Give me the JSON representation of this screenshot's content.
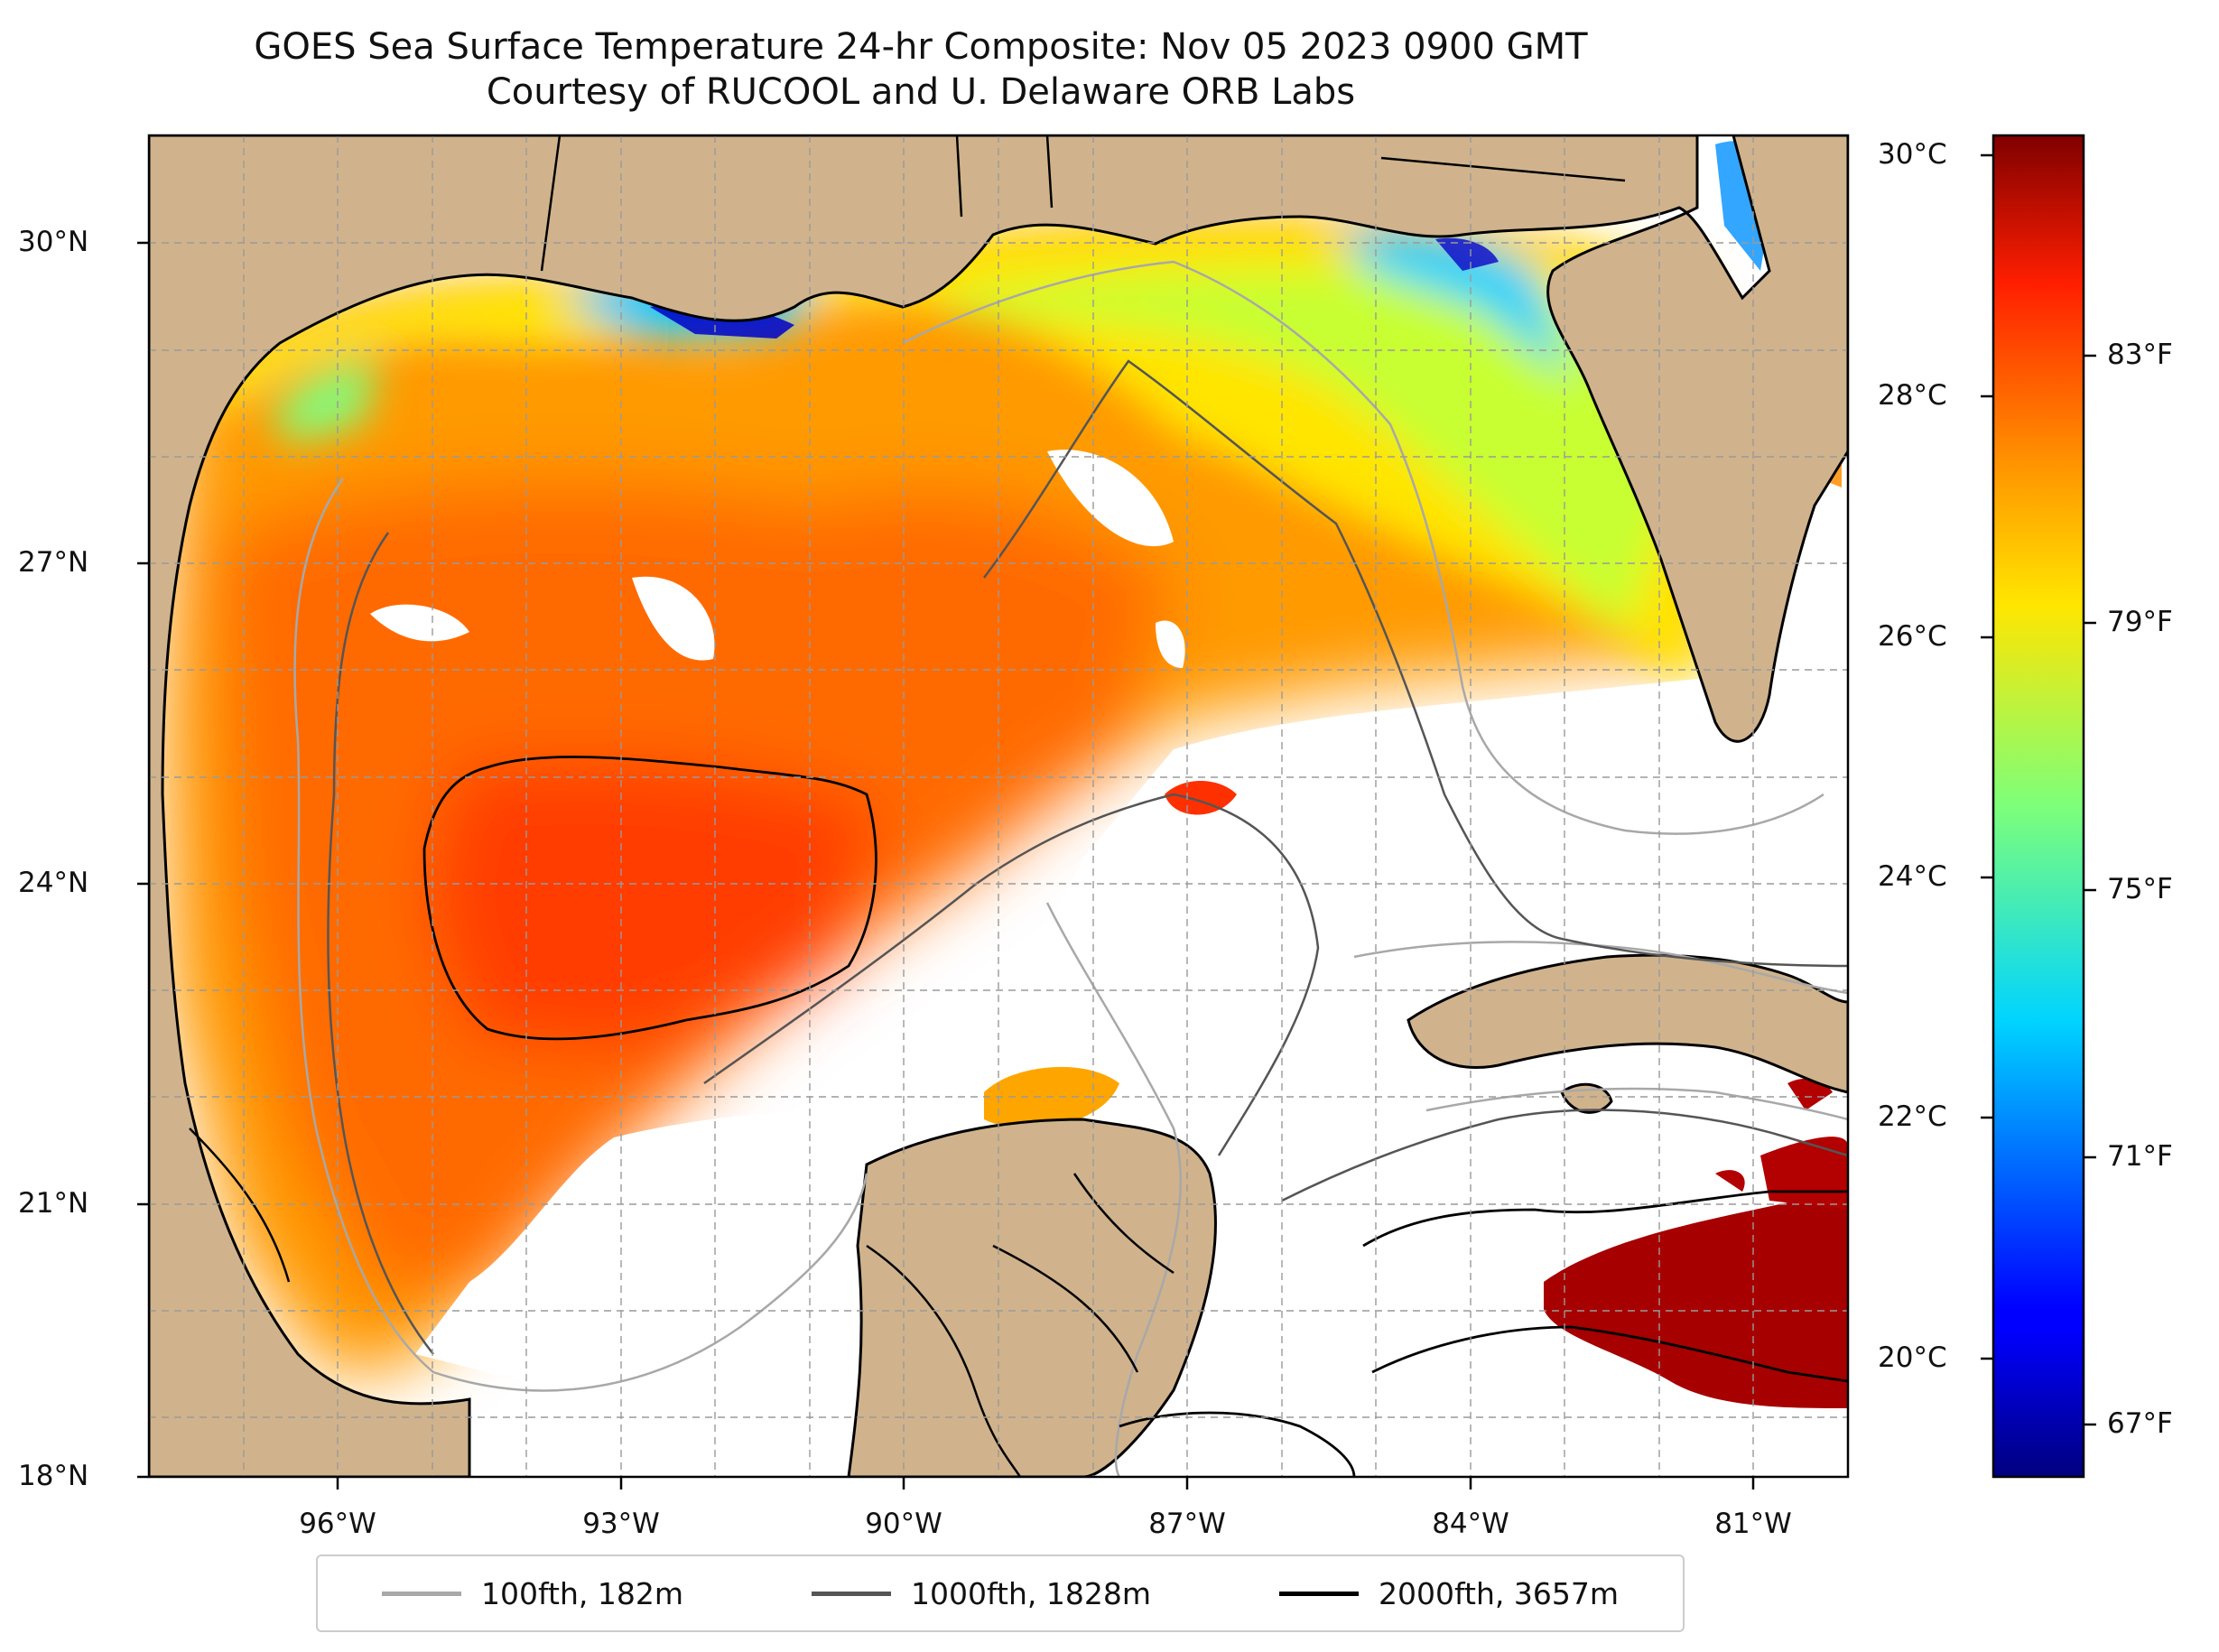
{
  "title": {
    "line1": "GOES Sea Surface Temperature 24-hr Composite: Nov 05 2023 0900 GMT",
    "line2": "Courtesy of RUCOOL and U. Delaware ORB Labs"
  },
  "map": {
    "lon_range": [
      -98,
      -80
    ],
    "lat_range": [
      18,
      31
    ],
    "grid": true,
    "lat_ticks": [
      "30°N",
      "27°N",
      "24°N",
      "21°N",
      "18°N"
    ],
    "lon_ticks": [
      "96°W",
      "93°W",
      "90°W",
      "87°W",
      "84°W",
      "81°W"
    ],
    "land_color": "#d0b38c",
    "no_data_color": "#ffffff"
  },
  "colorbar": {
    "celsius_ticks": [
      "30°C",
      "28°C",
      "26°C",
      "24°C",
      "22°C",
      "20°C"
    ],
    "fahrenheit_ticks": [
      "83°F",
      "79°F",
      "75°F",
      "71°F",
      "67°F"
    ],
    "colormap": "jet"
  },
  "legend": {
    "items": [
      {
        "label": "100fth, 182m",
        "color": "#a8a8a8"
      },
      {
        "label": "1000fth, 1828m",
        "color": "#555555"
      },
      {
        "label": "2000fth, 3657m",
        "color": "#000000"
      }
    ]
  }
}
